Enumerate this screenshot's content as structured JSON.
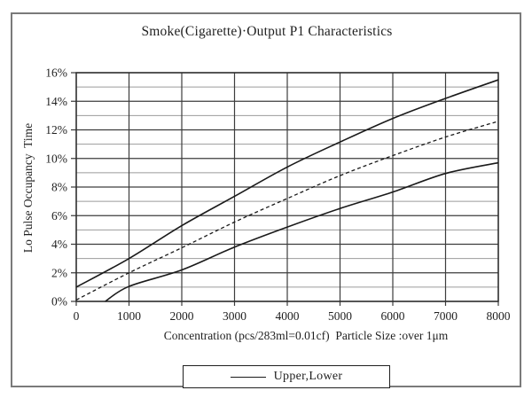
{
  "figure": {
    "title": "Smoke(Cigarette)·Output P1 Characteristics",
    "legend_label": "Upper,Lower"
  },
  "chart_data": {
    "type": "line",
    "title": "Smoke(Cigarette)·Output P1 Characteristics",
    "xlabel": "Concentration (pcs/283ml=0.01cf)  Particle Size :over 1μm",
    "ylabel": "Lo Pulse Occupancy  Time",
    "xlim": [
      0,
      8000
    ],
    "ylim": [
      0,
      16
    ],
    "x_ticks": [
      0,
      1000,
      2000,
      3000,
      4000,
      5000,
      6000,
      7000,
      8000
    ],
    "x_tick_labels": [
      "0",
      "1000",
      "2000",
      "3000",
      "4000",
      "5000",
      "6000",
      "7000",
      "8000"
    ],
    "y_ticks_major": [
      0,
      2,
      4,
      6,
      8,
      10,
      12,
      14,
      16
    ],
    "y_tick_labels": [
      "0%",
      "2%",
      "4%",
      "6%",
      "8%",
      "10%",
      "12%",
      "14%",
      "16%"
    ],
    "y_ticks_minor": [
      1,
      3,
      5,
      7,
      9,
      11,
      13,
      15
    ],
    "grid": true,
    "legend": {
      "position": "bottom-center",
      "label": "Upper,Lower",
      "sample_style": "solid"
    },
    "series": [
      {
        "id": "upper",
        "style": "solid",
        "x": [
          0,
          1000,
          2000,
          3000,
          4000,
          5000,
          6000,
          7000,
          8000
        ],
        "y": [
          1.0,
          3.0,
          5.3,
          7.35,
          9.4,
          11.15,
          12.8,
          14.2,
          15.5
        ]
      },
      {
        "id": "middle-dashed",
        "style": "dashed",
        "x": [
          0,
          1000,
          2000,
          3000,
          4000,
          5000,
          6000,
          7000,
          8000
        ],
        "y": [
          0.1,
          2.0,
          3.75,
          5.55,
          7.2,
          8.8,
          10.2,
          11.5,
          12.6
        ]
      },
      {
        "id": "lower",
        "style": "solid",
        "x": [
          550,
          1000,
          2000,
          3000,
          4000,
          5000,
          6000,
          7000,
          8000
        ],
        "y": [
          0.0,
          1.05,
          2.2,
          3.8,
          5.2,
          6.5,
          7.65,
          8.95,
          9.7
        ]
      }
    ],
    "colors": {
      "curve": "#1a1a1a",
      "grid_major": "#3d3d3d",
      "grid_minor": "#9b9b9b",
      "grid_vertical": "#3d3d3d",
      "frame": "#2e2e2e",
      "figure_border": "#7a7a7a",
      "text": "#1f1f1f",
      "background": "#ffffff"
    }
  }
}
